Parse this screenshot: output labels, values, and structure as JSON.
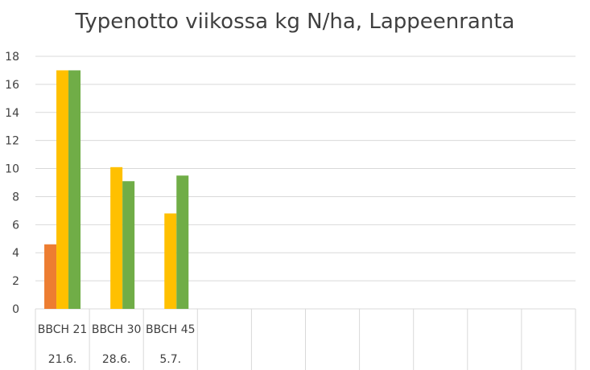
{
  "chart_data": {
    "type": "bar",
    "title": "Typenotto viikossa kg N/ha, Lappeenranta",
    "xlabel": "",
    "ylabel": "",
    "ylim": [
      0,
      18
    ],
    "yticks": [
      0,
      2,
      4,
      6,
      8,
      10,
      12,
      14,
      16,
      18
    ],
    "grid": true,
    "legend": "none",
    "categories": [
      {
        "stage": "BBCH 21",
        "date": "21.6."
      },
      {
        "stage": "BBCH 30",
        "date": "28.6."
      },
      {
        "stage": "BBCH 45",
        "date": "5.7."
      },
      {
        "stage": "",
        "date": ""
      },
      {
        "stage": "",
        "date": ""
      },
      {
        "stage": "",
        "date": ""
      },
      {
        "stage": "",
        "date": ""
      },
      {
        "stage": "",
        "date": ""
      },
      {
        "stage": "",
        "date": ""
      },
      {
        "stage": "",
        "date": ""
      }
    ],
    "series": [
      {
        "color": "#ED7D31",
        "values": [
          4.6,
          null,
          null,
          null,
          null,
          null,
          null,
          null,
          null,
          null
        ]
      },
      {
        "color": "#FFC000",
        "values": [
          17.0,
          10.1,
          6.8,
          null,
          null,
          null,
          null,
          null,
          null,
          null
        ]
      },
      {
        "color": "#70AD47",
        "values": [
          17.0,
          9.1,
          9.5,
          null,
          null,
          null,
          null,
          null,
          null,
          null
        ]
      }
    ]
  }
}
